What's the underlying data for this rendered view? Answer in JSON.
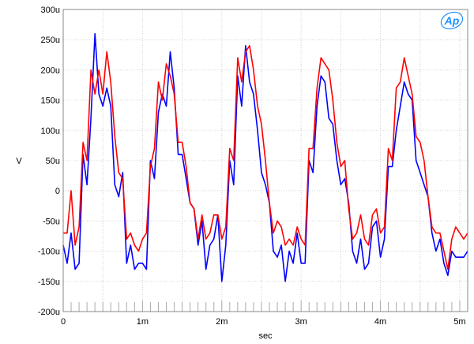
{
  "chart_data": {
    "type": "line",
    "xlabel": "sec",
    "ylabel": "V",
    "xlim": [
      0,
      0.0051
    ],
    "ylim": [
      -0.0002,
      0.0003
    ],
    "grid": true,
    "xticks": [
      {
        "value": 0,
        "label": "0"
      },
      {
        "value": 0.001,
        "label": "1m"
      },
      {
        "value": 0.002,
        "label": "2m"
      },
      {
        "value": 0.003,
        "label": "3m"
      },
      {
        "value": 0.004,
        "label": "4m"
      },
      {
        "value": 0.005,
        "label": "5m"
      }
    ],
    "yticks": [
      {
        "value": 0.0003,
        "label": "300u"
      },
      {
        "value": 0.00025,
        "label": "250u"
      },
      {
        "value": 0.0002,
        "label": "200u"
      },
      {
        "value": 0.00015,
        "label": "150u"
      },
      {
        "value": 0.0001,
        "label": "100u"
      },
      {
        "value": 5e-05,
        "label": "50u"
      },
      {
        "value": 0,
        "label": "0"
      },
      {
        "value": -5e-05,
        "label": "-50u"
      },
      {
        "value": -0.0001,
        "label": "-100u"
      },
      {
        "value": -0.00015,
        "label": "-150u"
      },
      {
        "value": -0.0002,
        "label": "-200u"
      }
    ],
    "series": [
      {
        "color": "#ff0000",
        "x": [
          0,
          5e-05,
          0.0001,
          0.00015,
          0.0002,
          0.00025,
          0.0003,
          0.00035,
          0.0004,
          0.00045,
          0.0005,
          0.00055,
          0.0006,
          0.00065,
          0.0007,
          0.00075,
          0.0008,
          0.00085,
          0.0009,
          0.00095,
          0.001,
          0.00105,
          0.0011,
          0.00115,
          0.0012,
          0.00125,
          0.0013,
          0.00135,
          0.0014,
          0.00145,
          0.0015,
          0.00155,
          0.0016,
          0.00165,
          0.0017,
          0.00175,
          0.0018,
          0.00185,
          0.0019,
          0.00195,
          0.002,
          0.00205,
          0.0021,
          0.00215,
          0.0022,
          0.00225,
          0.0023,
          0.00235,
          0.0024,
          0.00245,
          0.0025,
          0.00255,
          0.0026,
          0.00265,
          0.0027,
          0.00275,
          0.0028,
          0.00285,
          0.0029,
          0.00295,
          0.003,
          0.00305,
          0.0031,
          0.00315,
          0.0032,
          0.00325,
          0.0033,
          0.00335,
          0.0034,
          0.00345,
          0.0035,
          0.00355,
          0.0036,
          0.00365,
          0.0037,
          0.00375,
          0.0038,
          0.00385,
          0.0039,
          0.00395,
          0.004,
          0.00405,
          0.0041,
          0.00415,
          0.0042,
          0.00425,
          0.0043,
          0.00435,
          0.0044,
          0.00445,
          0.0045,
          0.00455,
          0.0046,
          0.00465,
          0.0047,
          0.00475,
          0.0048,
          0.00485,
          0.0049,
          0.00495,
          0.005,
          0.00505,
          0.0051
        ],
        "values": [
          -7e-05,
          -7e-05,
          0.0,
          -9e-05,
          -6e-05,
          8e-05,
          5e-05,
          0.0002,
          0.00016,
          0.0002,
          0.00016,
          0.00023,
          0.00018,
          9e-05,
          3e-05,
          2e-05,
          -8e-05,
          -7e-05,
          -9e-05,
          -0.0001,
          -8e-05,
          -7e-05,
          4e-05,
          7e-05,
          0.00018,
          0.00015,
          0.00021,
          0.00019,
          0.00016,
          8e-05,
          8e-05,
          4e-05,
          -2e-05,
          -3e-05,
          -8e-05,
          -4e-05,
          -8e-05,
          -7e-05,
          -4e-05,
          -4e-05,
          -8e-05,
          -6e-05,
          7e-05,
          5e-05,
          0.00022,
          0.00018,
          0.00023,
          0.00024,
          0.0002,
          0.00014,
          0.00011,
          5e-05,
          -2e-05,
          -7e-05,
          -5e-05,
          -6e-05,
          -9e-05,
          -8e-05,
          -9e-05,
          -6e-05,
          -8e-05,
          -9e-05,
          7e-05,
          7e-05,
          0.00017,
          0.00022,
          0.00021,
          0.0002,
          0.00015,
          8e-05,
          4e-05,
          5e-05,
          -3e-05,
          -8e-05,
          -7e-05,
          -4e-05,
          -8e-05,
          -9e-05,
          -4e-05,
          -3e-05,
          -7e-05,
          -6e-05,
          7e-05,
          5e-05,
          0.00017,
          0.00018,
          0.00022,
          0.00019,
          0.00016,
          9e-05,
          8e-05,
          5e-05,
          -1e-05,
          -6e-05,
          -7e-05,
          -7e-05,
          -0.0001,
          -0.00013,
          -8e-05,
          -6e-05,
          -7e-05,
          -8e-05,
          -7e-05
        ]
      },
      {
        "color": "#0000ff",
        "x": [
          0,
          5e-05,
          0.0001,
          0.00015,
          0.0002,
          0.00025,
          0.0003,
          0.00035,
          0.0004,
          0.00045,
          0.0005,
          0.00055,
          0.0006,
          0.00065,
          0.0007,
          0.00075,
          0.0008,
          0.00085,
          0.0009,
          0.00095,
          0.001,
          0.00105,
          0.0011,
          0.00115,
          0.0012,
          0.00125,
          0.0013,
          0.00135,
          0.0014,
          0.00145,
          0.0015,
          0.00155,
          0.0016,
          0.00165,
          0.0017,
          0.00175,
          0.0018,
          0.00185,
          0.0019,
          0.00195,
          0.002,
          0.00205,
          0.0021,
          0.00215,
          0.0022,
          0.00225,
          0.0023,
          0.00235,
          0.0024,
          0.00245,
          0.0025,
          0.00255,
          0.0026,
          0.00265,
          0.0027,
          0.00275,
          0.0028,
          0.00285,
          0.0029,
          0.00295,
          0.003,
          0.00305,
          0.0031,
          0.00315,
          0.0032,
          0.00325,
          0.0033,
          0.00335,
          0.0034,
          0.00345,
          0.0035,
          0.00355,
          0.0036,
          0.00365,
          0.0037,
          0.00375,
          0.0038,
          0.00385,
          0.0039,
          0.00395,
          0.004,
          0.00405,
          0.0041,
          0.00415,
          0.0042,
          0.00425,
          0.0043,
          0.00435,
          0.0044,
          0.00445,
          0.0045,
          0.00455,
          0.0046,
          0.00465,
          0.0047,
          0.00475,
          0.0048,
          0.00485,
          0.0049,
          0.00495,
          0.005,
          0.00505,
          0.0051
        ],
        "values": [
          -9e-05,
          -0.00012,
          -7e-05,
          -0.00013,
          -0.00012,
          6e-05,
          1e-05,
          0.00012,
          0.00026,
          0.00016,
          0.00014,
          0.00017,
          0.00014,
          1e-05,
          -1e-05,
          3e-05,
          -0.00012,
          -9e-05,
          -0.00013,
          -0.00012,
          -0.00012,
          -0.00013,
          5e-05,
          2e-05,
          0.00013,
          0.00016,
          0.00014,
          0.00023,
          0.00017,
          6e-05,
          6e-05,
          2e-05,
          -2e-05,
          -3e-05,
          -9e-05,
          -5e-05,
          -0.00013,
          -9e-05,
          -8e-05,
          -4e-05,
          -0.00015,
          -9e-05,
          5e-05,
          1e-05,
          0.00019,
          0.00014,
          0.00024,
          0.00018,
          0.00016,
          0.0001,
          3e-05,
          1e-05,
          -2e-05,
          -0.0001,
          -0.00011,
          -9e-05,
          -0.00015,
          -0.0001,
          -0.00012,
          -7e-05,
          -0.00012,
          -0.00012,
          5e-05,
          3e-05,
          0.00014,
          0.00019,
          0.00018,
          0.00012,
          0.00011,
          5e-05,
          1e-05,
          2e-05,
          -2e-05,
          -0.0001,
          -0.00012,
          -8e-05,
          -0.00013,
          -0.00012,
          -6e-05,
          -5e-05,
          -0.00011,
          -8e-05,
          4e-05,
          4e-05,
          0.0001,
          0.00014,
          0.00018,
          0.00016,
          0.00015,
          5e-05,
          3e-05,
          1e-05,
          -1e-05,
          -7e-05,
          -0.0001,
          -8e-05,
          -0.00012,
          -0.00014,
          -0.0001,
          -0.00011,
          -0.00011,
          -0.00011,
          -0.0001
        ]
      }
    ]
  },
  "logo": {
    "text": "Ap",
    "color": "#1e90ff"
  }
}
